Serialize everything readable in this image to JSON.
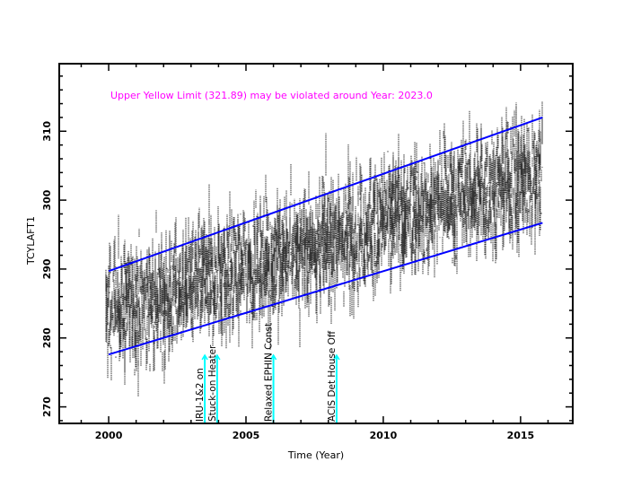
{
  "chart_data": {
    "type": "scatter",
    "title": "",
    "xlabel": "Time (Year)",
    "ylabel": "TCYLAFT1",
    "xlim": [
      1998.2,
      2016.9
    ],
    "ylim": [
      267.6,
      319.8
    ],
    "x_ticks": [
      2000,
      2005,
      2010,
      2015
    ],
    "x_tick_labels": [
      "2000",
      "2005",
      "2010",
      "2015"
    ],
    "y_ticks": [
      270,
      280,
      290,
      300,
      310
    ],
    "y_tick_labels": [
      "270",
      "280",
      "290",
      "300",
      "310"
    ],
    "grid": false,
    "annotation": "Upper Yellow  Limit (321.89) may be violated around Year: 2023.0",
    "data_density": {
      "x_start": 1999.9,
      "x_end": 2015.8,
      "center_start": 283.5,
      "center_end": 304.5,
      "spread": 6
    },
    "series": [
      {
        "name": "upper-trend",
        "x": [
          2000.0,
          2015.8
        ],
        "y": [
          289.7,
          312.0
        ]
      },
      {
        "name": "lower-trend",
        "x": [
          2000.0,
          2015.8
        ],
        "y": [
          277.6,
          296.7
        ]
      }
    ],
    "events": [
      {
        "year": 2003.5,
        "label": "IRU-1&2 on"
      },
      {
        "year": 2003.95,
        "label": "Stuck-on Heater"
      },
      {
        "year": 2006.0,
        "label": "Relaxed EPHIN Const"
      },
      {
        "year": 2008.3,
        "label": "ACIS Det House Off"
      }
    ]
  },
  "colors": {
    "frame": "#000000",
    "data": "#000000",
    "trend": "#0000ff",
    "annotation": "#ff00ff",
    "event_marker": "#00ffff"
  }
}
